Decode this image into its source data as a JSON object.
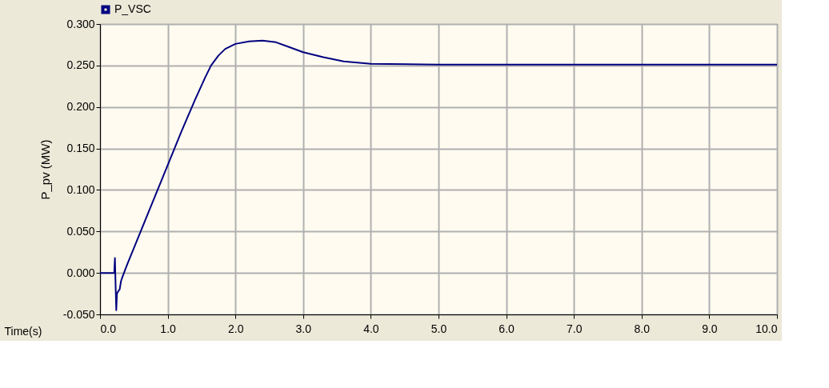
{
  "chart_data": {
    "type": "line",
    "xlabel": "Time(s)",
    "ylabel": "P_pv (MW)",
    "xlim": [
      0,
      10
    ],
    "ylim": [
      -0.05,
      0.3
    ],
    "xticks": [
      {
        "value": 0,
        "label": "0.0"
      },
      {
        "value": 1,
        "label": "1.0"
      },
      {
        "value": 2,
        "label": "2.0"
      },
      {
        "value": 3,
        "label": "3.0"
      },
      {
        "value": 4,
        "label": "4.0"
      },
      {
        "value": 5,
        "label": "5.0"
      },
      {
        "value": 6,
        "label": "6.0"
      },
      {
        "value": 7,
        "label": "7.0"
      },
      {
        "value": 8,
        "label": "8.0"
      },
      {
        "value": 9,
        "label": "9.0"
      },
      {
        "value": 10,
        "label": "10.0"
      }
    ],
    "yticks": [
      {
        "value": -0.05,
        "label": "-0.050"
      },
      {
        "value": 0,
        "label": "0.000"
      },
      {
        "value": 0.05,
        "label": "0.050"
      },
      {
        "value": 0.1,
        "label": "0.100"
      },
      {
        "value": 0.15,
        "label": "0.150"
      },
      {
        "value": 0.2,
        "label": "0.200"
      },
      {
        "value": 0.25,
        "label": "0.250"
      },
      {
        "value": 0.3,
        "label": "0.300"
      }
    ],
    "grid": true,
    "legend": "top left",
    "marker": "none",
    "line_style": "solid",
    "series": [
      {
        "name": "P_VSC",
        "color": "#000080",
        "x": [
          0,
          0.21,
          0.22,
          0.23,
          0.24,
          0.25,
          0.27,
          0.29,
          0.31,
          0.33,
          0.4,
          0.6,
          0.8,
          1.0,
          1.2,
          1.4,
          1.55,
          1.64,
          1.75,
          1.85,
          2.0,
          2.2,
          2.4,
          2.6,
          2.8,
          3.0,
          3.3,
          3.6,
          4.0,
          5.0,
          6.0,
          8.0,
          10.0
        ],
        "values": [
          0,
          0,
          0.018,
          -0.015,
          -0.045,
          -0.025,
          -0.022,
          -0.02,
          -0.01,
          -0.005,
          0.01,
          0.05,
          0.09,
          0.13,
          0.17,
          0.208,
          0.235,
          0.25,
          0.262,
          0.27,
          0.276,
          0.279,
          0.28,
          0.278,
          0.272,
          0.266,
          0.26,
          0.255,
          0.252,
          0.251,
          0.251,
          0.251,
          0.251
        ]
      }
    ]
  }
}
